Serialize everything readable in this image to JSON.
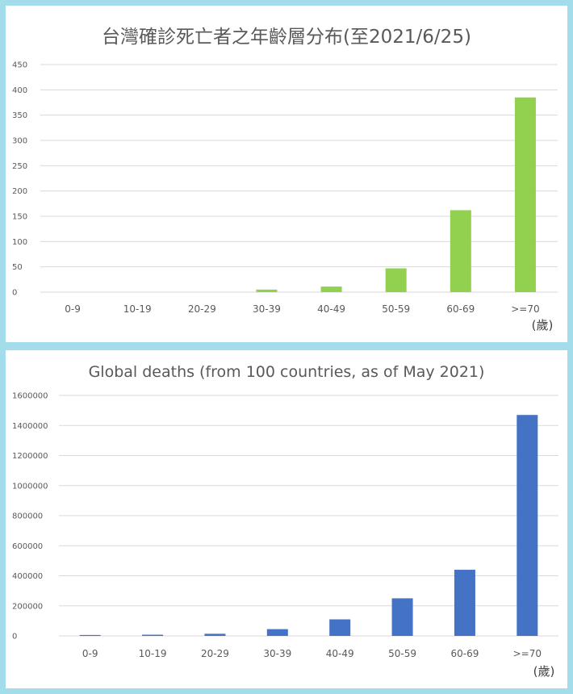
{
  "chart_data": [
    {
      "type": "bar",
      "title": "台灣確診死亡者之年齡層分布(至2021/6/25)",
      "categories": [
        "0-9",
        "10-19",
        "20-29",
        "30-39",
        "40-49",
        "50-59",
        "60-69",
        ">=70"
      ],
      "values": [
        0,
        0,
        0,
        5,
        11,
        47,
        162,
        385
      ],
      "ylim": [
        0,
        450
      ],
      "yticks": [
        0,
        50,
        100,
        150,
        200,
        250,
        300,
        350,
        400,
        450
      ],
      "unit_label": "(歲)",
      "color": "#92d050",
      "grid": true,
      "legend": "none"
    },
    {
      "type": "bar",
      "title": "Global deaths (from 100 countries, as of May 2021)",
      "categories": [
        "0-9",
        "10-19",
        "20-29",
        "30-39",
        "40-49",
        "50-59",
        "60-69",
        ">=70"
      ],
      "values": [
        6000,
        8000,
        14000,
        45000,
        110000,
        250000,
        440000,
        1470000
      ],
      "ylim": [
        0,
        1600000
      ],
      "yticks": [
        0,
        200000,
        400000,
        600000,
        800000,
        1000000,
        1200000,
        1400000,
        1600000
      ],
      "unit_label": "(歲)",
      "color": "#4472c4",
      "grid": true,
      "legend": "none"
    }
  ]
}
